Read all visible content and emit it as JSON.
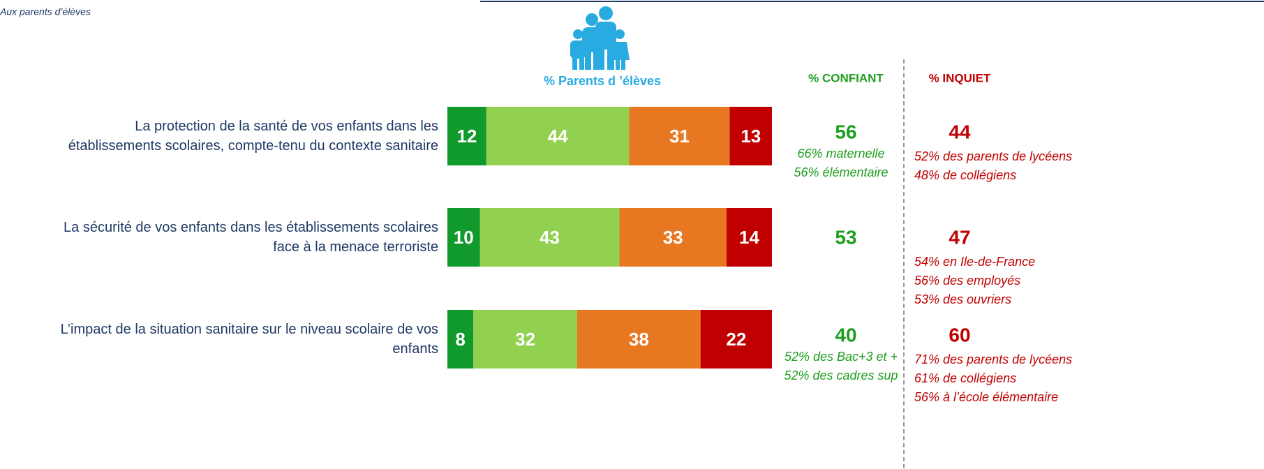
{
  "chart_data": {
    "type": "stacked-bar-horizontal",
    "note": "Aux parents d’élèves",
    "title": "% Parents d ’élèves",
    "categories": [
      "La protection de la santé de vos enfants dans les\nétablissements scolaires, compte-tenu du contexte sanitaire",
      "La sécurité de vos enfants dans les établissements scolaires\nface à la menace terroriste",
      "L’impact de la situation sanitaire sur le niveau scolaire de vos\nenfants"
    ],
    "series": [
      {
        "color": "#109a2c",
        "values": [
          12,
          10,
          8
        ]
      },
      {
        "color": "#92d050",
        "values": [
          44,
          43,
          32
        ]
      },
      {
        "color": "#e87722",
        "values": [
          31,
          33,
          38
        ]
      },
      {
        "color": "#c00000",
        "values": [
          13,
          14,
          22
        ]
      }
    ],
    "confiant_header": "% CONFIANT",
    "inquiet_header": "% INQUIET",
    "confiant": [
      56,
      53,
      40
    ],
    "inquiet": [
      44,
      47,
      60
    ],
    "confiant_color": "#1e9e1e",
    "inquiet_color": "#c00000",
    "details": [
      {
        "confiant": [
          "66% maternelle",
          "56% élémentaire"
        ],
        "inquiet": [
          "52% des parents de lycéens",
          "48% de collégiens"
        ]
      },
      {
        "inquiet": [
          "54% en Ile-de-France",
          "56% des employés",
          "53% des ouvriers"
        ]
      },
      {
        "confiant": [
          "52% des Bac+3 et +",
          "52% des cadres sup"
        ],
        "inquiet": [
          "71% des parents de lycéens",
          "61% de collégiens",
          "56% à l’école élémentaire"
        ]
      }
    ]
  }
}
